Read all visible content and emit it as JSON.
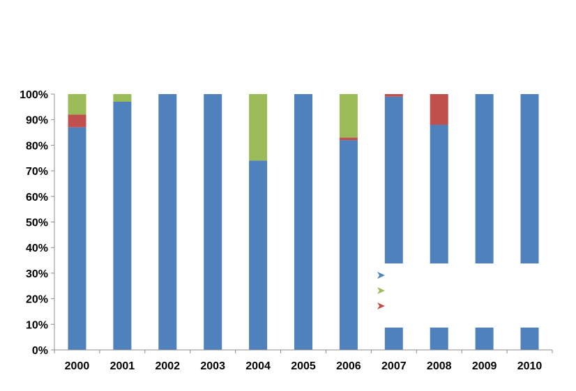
{
  "chart_data": {
    "type": "bar",
    "stacked": true,
    "percent": true,
    "title": "",
    "xlabel": "",
    "ylabel": "",
    "ylim": [
      0,
      100
    ],
    "y_ticks": [
      "0%",
      "10%",
      "20%",
      "30%",
      "40%",
      "50%",
      "60%",
      "70%",
      "80%",
      "90%",
      "100%"
    ],
    "grid": false,
    "categories": [
      "2000",
      "2001",
      "2002",
      "2003",
      "2004",
      "2005",
      "2006",
      "2007",
      "2008",
      "2009",
      "2010"
    ],
    "series": [
      {
        "color": "#4f81bd",
        "values": [
          87,
          97,
          100,
          100,
          74,
          100,
          82,
          99,
          88,
          100,
          100
        ]
      },
      {
        "color": "#c0504d",
        "values": [
          5,
          0,
          0,
          0,
          0,
          0,
          1,
          1,
          12,
          0,
          0
        ]
      },
      {
        "color": "#9bbb59",
        "values": [
          8,
          3,
          0,
          0,
          26,
          0,
          17,
          0,
          0,
          0,
          0
        ]
      }
    ],
    "legend": {
      "placement": "bottom-right",
      "markers": [
        {
          "icon": "arrow-marker-icon",
          "color": "#4f81bd"
        },
        {
          "icon": "arrow-marker-icon",
          "color": "#9bbb59"
        },
        {
          "icon": "arrow-marker-icon",
          "color": "#c0504d"
        }
      ]
    }
  }
}
